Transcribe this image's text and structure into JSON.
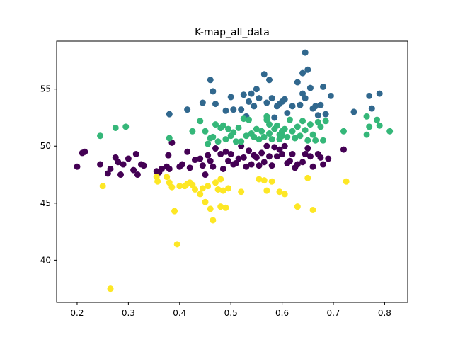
{
  "chart_data": {
    "type": "scatter",
    "title": "K-map_all_data",
    "xlabel": "",
    "ylabel": "",
    "xlim": [
      0.16,
      0.845
    ],
    "ylim": [
      36.3,
      59.2
    ],
    "xticks": [
      0.2,
      0.3,
      0.4,
      0.5,
      0.6,
      0.7,
      0.8
    ],
    "yticks": [
      40,
      45,
      50,
      55
    ],
    "xtick_labels": [
      "0.2",
      "0.3",
      "0.4",
      "0.5",
      "0.6",
      "0.7",
      "0.8"
    ],
    "ytick_labels": [
      "40",
      "45",
      "50",
      "55"
    ],
    "grid": false,
    "legend": "none",
    "series": [
      {
        "color": "#440154",
        "points": [
          [
            0.2,
            48.2
          ],
          [
            0.21,
            49.4
          ],
          [
            0.215,
            49.5
          ],
          [
            0.245,
            48.4
          ],
          [
            0.26,
            47.6
          ],
          [
            0.265,
            48.0
          ],
          [
            0.275,
            49.0
          ],
          [
            0.28,
            48.6
          ],
          [
            0.285,
            47.5
          ],
          [
            0.29,
            48.4
          ],
          [
            0.3,
            48.9
          ],
          [
            0.31,
            47.9
          ],
          [
            0.315,
            49.3
          ],
          [
            0.318,
            47.5
          ],
          [
            0.325,
            48.4
          ],
          [
            0.33,
            48.3
          ],
          [
            0.355,
            47.8
          ],
          [
            0.36,
            47.7
          ],
          [
            0.365,
            48.0
          ],
          [
            0.375,
            48.2
          ],
          [
            0.378,
            49.2
          ],
          [
            0.38,
            48.0
          ],
          [
            0.385,
            50.3
          ],
          [
            0.4,
            48.2
          ],
          [
            0.405,
            48.4
          ],
          [
            0.415,
            49.5
          ],
          [
            0.42,
            48.1
          ],
          [
            0.43,
            48.8
          ],
          [
            0.44,
            48.9
          ],
          [
            0.445,
            48.3
          ],
          [
            0.45,
            47.5
          ],
          [
            0.455,
            49.2
          ],
          [
            0.46,
            48.7
          ],
          [
            0.465,
            48.2
          ],
          [
            0.47,
            49.8
          ],
          [
            0.48,
            49.3
          ],
          [
            0.485,
            48.0
          ],
          [
            0.49,
            49.5
          ],
          [
            0.495,
            48.7
          ],
          [
            0.5,
            49.3
          ],
          [
            0.505,
            48.4
          ],
          [
            0.51,
            48.5
          ],
          [
            0.515,
            48.9
          ],
          [
            0.52,
            50.0
          ],
          [
            0.525,
            49.0
          ],
          [
            0.53,
            48.2
          ],
          [
            0.535,
            49.6
          ],
          [
            0.54,
            48.4
          ],
          [
            0.545,
            49.2
          ],
          [
            0.55,
            49.0
          ],
          [
            0.555,
            48.3
          ],
          [
            0.56,
            49.4
          ],
          [
            0.565,
            48.6
          ],
          [
            0.57,
            50.0
          ],
          [
            0.575,
            49.1
          ],
          [
            0.58,
            48.3
          ],
          [
            0.585,
            49.9
          ],
          [
            0.59,
            49.1
          ],
          [
            0.595,
            49.7
          ],
          [
            0.6,
            49.3
          ],
          [
            0.605,
            50.0
          ],
          [
            0.61,
            48.5
          ],
          [
            0.615,
            48.7
          ],
          [
            0.62,
            49.3
          ],
          [
            0.625,
            48.1
          ],
          [
            0.63,
            48.4
          ],
          [
            0.64,
            48.6
          ],
          [
            0.645,
            49.3
          ],
          [
            0.65,
            49.8
          ],
          [
            0.655,
            49.1
          ],
          [
            0.66,
            48.2
          ],
          [
            0.67,
            49.3
          ],
          [
            0.675,
            49.0
          ],
          [
            0.68,
            48.4
          ],
          [
            0.69,
            48.9
          ],
          [
            0.72,
            49.7
          ]
        ]
      },
      {
        "color": "#31688e",
        "points": [
          [
            0.38,
            52.8
          ],
          [
            0.415,
            53.2
          ],
          [
            0.445,
            53.8
          ],
          [
            0.46,
            55.8
          ],
          [
            0.465,
            54.8
          ],
          [
            0.47,
            53.7
          ],
          [
            0.48,
            51.6
          ],
          [
            0.49,
            53.1
          ],
          [
            0.5,
            54.3
          ],
          [
            0.505,
            53.2
          ],
          [
            0.52,
            53.2
          ],
          [
            0.525,
            54.5
          ],
          [
            0.53,
            52.6
          ],
          [
            0.535,
            53.9
          ],
          [
            0.54,
            54.6
          ],
          [
            0.545,
            53.5
          ],
          [
            0.55,
            55.0
          ],
          [
            0.555,
            54.2
          ],
          [
            0.565,
            56.3
          ],
          [
            0.57,
            53.8
          ],
          [
            0.575,
            55.8
          ],
          [
            0.58,
            54.2
          ],
          [
            0.585,
            52.5
          ],
          [
            0.59,
            53.5
          ],
          [
            0.595,
            53.7
          ],
          [
            0.6,
            53.9
          ],
          [
            0.605,
            54.1
          ],
          [
            0.61,
            52.9
          ],
          [
            0.62,
            53.5
          ],
          [
            0.63,
            55.6
          ],
          [
            0.635,
            53.6
          ],
          [
            0.64,
            56.4
          ],
          [
            0.645,
            58.2
          ],
          [
            0.65,
            56.7
          ],
          [
            0.655,
            55.1
          ],
          [
            0.66,
            53.3
          ],
          [
            0.665,
            53.5
          ],
          [
            0.67,
            52.7
          ],
          [
            0.675,
            53.6
          ],
          [
            0.68,
            55.2
          ],
          [
            0.685,
            52.8
          ],
          [
            0.695,
            54.4
          ],
          [
            0.74,
            53.0
          ],
          [
            0.77,
            54.4
          ],
          [
            0.775,
            53.3
          ],
          [
            0.79,
            54.6
          ],
          [
            0.64,
            54.6
          ],
          [
            0.645,
            54.2
          ],
          [
            0.6,
            51.3
          ]
        ]
      },
      {
        "color": "#35b779",
        "points": [
          [
            0.245,
            50.9
          ],
          [
            0.275,
            51.6
          ],
          [
            0.295,
            51.7
          ],
          [
            0.38,
            50.7
          ],
          [
            0.425,
            51.3
          ],
          [
            0.44,
            52.2
          ],
          [
            0.45,
            51.3
          ],
          [
            0.455,
            50.2
          ],
          [
            0.46,
            50.7
          ],
          [
            0.465,
            50.8
          ],
          [
            0.47,
            51.9
          ],
          [
            0.475,
            50.4
          ],
          [
            0.48,
            51.6
          ],
          [
            0.485,
            51.8
          ],
          [
            0.49,
            50.6
          ],
          [
            0.495,
            51.5
          ],
          [
            0.5,
            50.9
          ],
          [
            0.505,
            51.2
          ],
          [
            0.51,
            50.4
          ],
          [
            0.515,
            51.6
          ],
          [
            0.52,
            50.4
          ],
          [
            0.525,
            52.4
          ],
          [
            0.53,
            50.9
          ],
          [
            0.535,
            52.3
          ],
          [
            0.54,
            51.1
          ],
          [
            0.545,
            50.8
          ],
          [
            0.55,
            51.5
          ],
          [
            0.555,
            50.6
          ],
          [
            0.56,
            51.3
          ],
          [
            0.565,
            50.8
          ],
          [
            0.57,
            52.3
          ],
          [
            0.575,
            51.9
          ],
          [
            0.58,
            50.6
          ],
          [
            0.585,
            51.5
          ],
          [
            0.59,
            51.8
          ],
          [
            0.595,
            50.6
          ],
          [
            0.6,
            51.3
          ],
          [
            0.605,
            51.5
          ],
          [
            0.61,
            50.8
          ],
          [
            0.615,
            52.3
          ],
          [
            0.62,
            51.3
          ],
          [
            0.625,
            50.7
          ],
          [
            0.63,
            51.7
          ],
          [
            0.635,
            50.9
          ],
          [
            0.64,
            52.2
          ],
          [
            0.645,
            51.4
          ],
          [
            0.65,
            50.5
          ],
          [
            0.655,
            51.9
          ],
          [
            0.66,
            51.0
          ],
          [
            0.665,
            50.5
          ],
          [
            0.67,
            52.1
          ],
          [
            0.675,
            51.7
          ],
          [
            0.68,
            50.5
          ],
          [
            0.685,
            52.2
          ],
          [
            0.72,
            51.3
          ],
          [
            0.765,
            52.6
          ],
          [
            0.77,
            51.7
          ],
          [
            0.765,
            51.0
          ],
          [
            0.785,
            52.3
          ],
          [
            0.79,
            51.8
          ],
          [
            0.81,
            51.3
          ],
          [
            0.57,
            52.6
          ],
          [
            0.575,
            51.1
          ],
          [
            0.595,
            51.0
          ],
          [
            0.6,
            50.9
          ]
        ]
      },
      {
        "color": "#fde725",
        "points": [
          [
            0.25,
            46.5
          ],
          [
            0.265,
            37.5
          ],
          [
            0.355,
            47.3
          ],
          [
            0.357,
            46.9
          ],
          [
            0.375,
            47.3
          ],
          [
            0.38,
            46.8
          ],
          [
            0.385,
            46.4
          ],
          [
            0.39,
            44.3
          ],
          [
            0.395,
            41.4
          ],
          [
            0.4,
            46.5
          ],
          [
            0.41,
            46.5
          ],
          [
            0.415,
            46.7
          ],
          [
            0.42,
            46.8
          ],
          [
            0.425,
            46.6
          ],
          [
            0.43,
            46.2
          ],
          [
            0.44,
            45.8
          ],
          [
            0.445,
            46.3
          ],
          [
            0.45,
            45.1
          ],
          [
            0.455,
            46.5
          ],
          [
            0.46,
            44.5
          ],
          [
            0.465,
            43.5
          ],
          [
            0.47,
            46.8
          ],
          [
            0.475,
            46.2
          ],
          [
            0.48,
            44.7
          ],
          [
            0.485,
            46.1
          ],
          [
            0.49,
            44.6
          ],
          [
            0.495,
            46.3
          ],
          [
            0.52,
            46.0
          ],
          [
            0.555,
            47.1
          ],
          [
            0.565,
            47.0
          ],
          [
            0.57,
            46.1
          ],
          [
            0.58,
            46.9
          ],
          [
            0.595,
            46.0
          ],
          [
            0.605,
            45.8
          ],
          [
            0.63,
            44.7
          ],
          [
            0.65,
            47.2
          ],
          [
            0.66,
            44.4
          ],
          [
            0.725,
            46.9
          ],
          [
            0.48,
            47.1
          ]
        ]
      }
    ]
  }
}
